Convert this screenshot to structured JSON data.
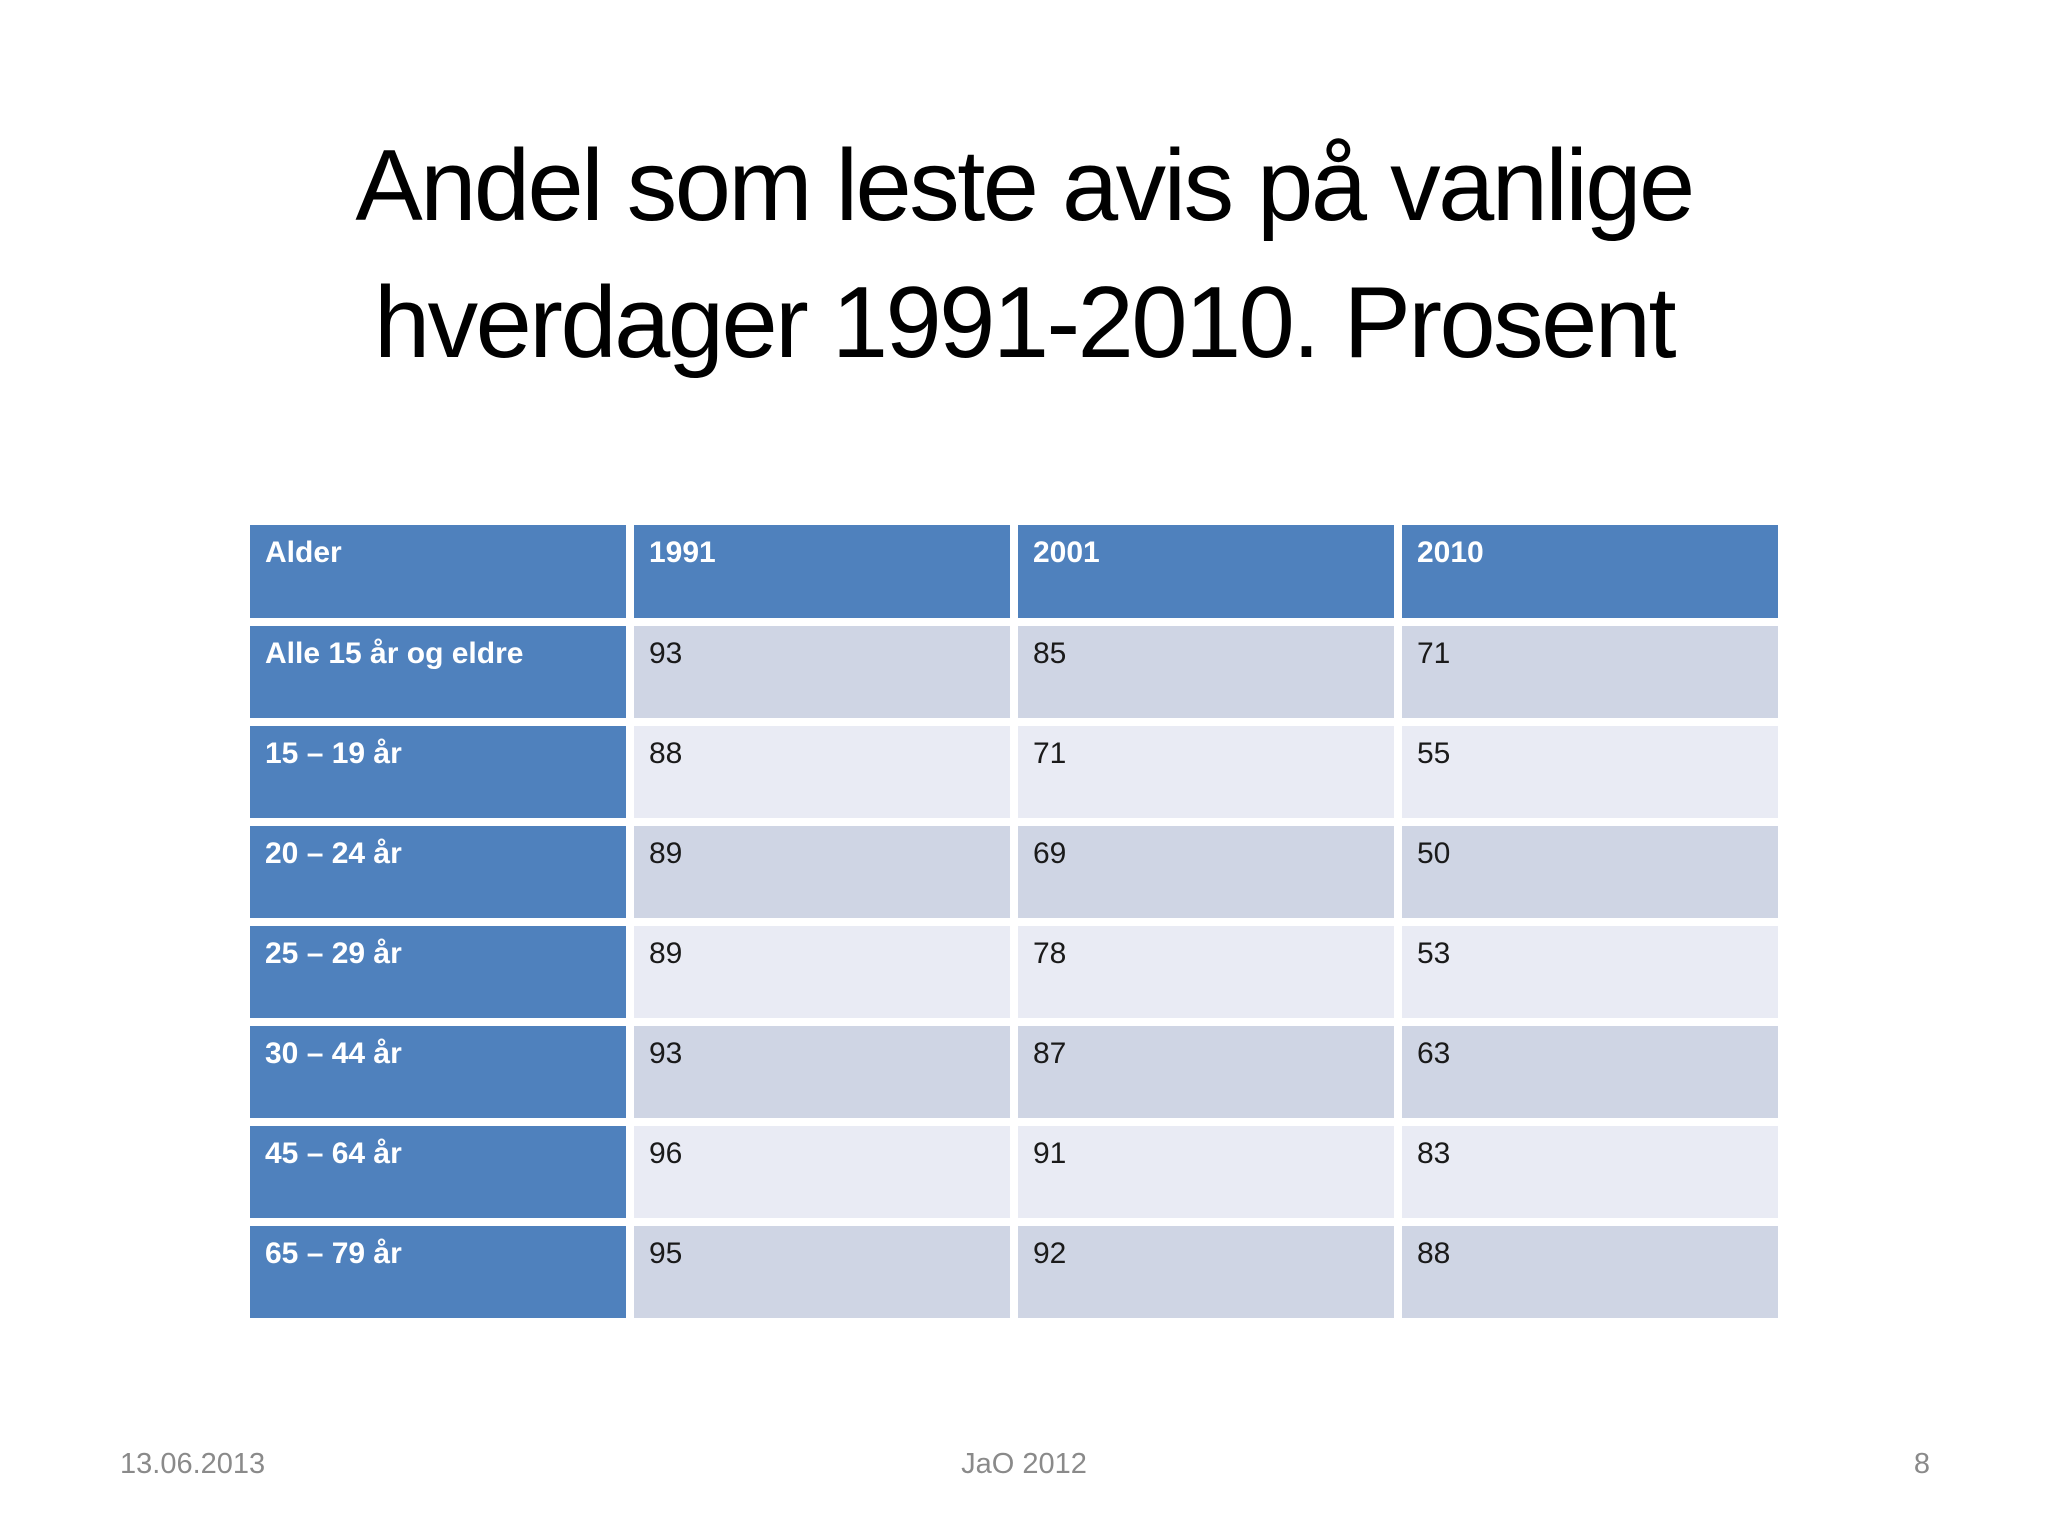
{
  "slide": {
    "title": {
      "line1": "Andel som leste avis på vanlige",
      "line2": "hverdager 1991-2010. Prosent"
    },
    "table": {
      "columns": [
        "Alder",
        "1991",
        "2001",
        "2010"
      ],
      "rows": [
        {
          "label": "Alle 15 år og eldre",
          "values": [
            "93",
            "85",
            "71"
          ]
        },
        {
          "label": "15 – 19 år",
          "values": [
            "88",
            "71",
            "55"
          ]
        },
        {
          "label": "20 – 24 år",
          "values": [
            "89",
            "69",
            "50"
          ]
        },
        {
          "label": "25 – 29 år",
          "values": [
            "89",
            "78",
            "53"
          ]
        },
        {
          "label": "30 – 44 år",
          "values": [
            "93",
            "87",
            "63"
          ]
        },
        {
          "label": "45 – 64 år",
          "values": [
            "96",
            "91",
            "83"
          ]
        },
        {
          "label": "65 – 79 år",
          "values": [
            "95",
            "92",
            "88"
          ]
        }
      ]
    },
    "footer": {
      "date": "13.06.2013",
      "center": "JaO 2012",
      "page": "8"
    },
    "colors": {
      "accent_blue": "#4f81bd",
      "band_dark": "#cfd5e4",
      "band_light": "#e9ebf4",
      "title_text": "#000000",
      "footer_text": "#8a8a8a"
    }
  }
}
